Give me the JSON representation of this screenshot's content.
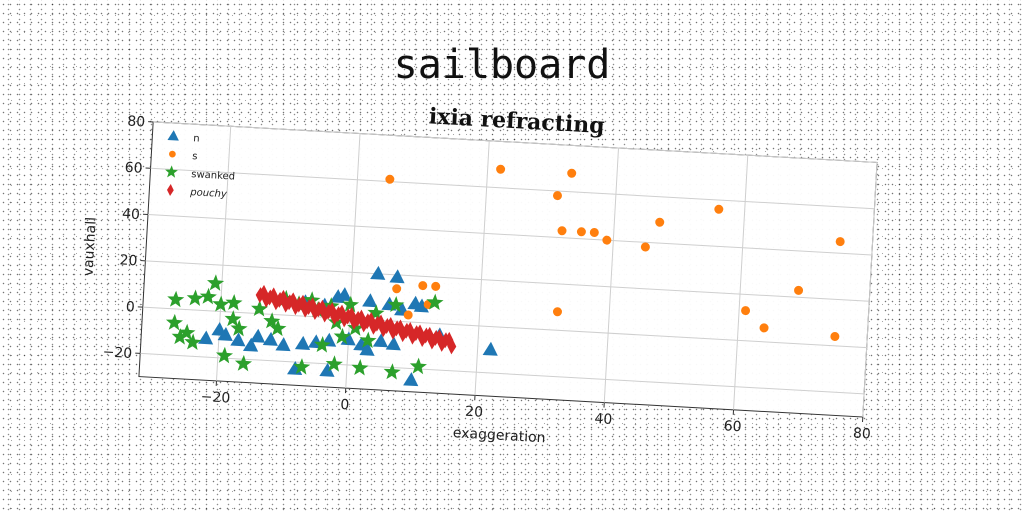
{
  "suptitle": "sailboard",
  "chart_data": {
    "type": "scatter",
    "title": "ixia refracting",
    "xlabel": "exaggeration",
    "ylabel": "vauxhall",
    "xlim": [
      -32,
      80
    ],
    "ylim": [
      -30,
      80
    ],
    "xticks": [
      -20,
      0,
      20,
      40,
      60,
      80
    ],
    "yticks": [
      -20,
      0,
      20,
      40,
      60,
      80
    ],
    "xtick_labels": [
      "−20",
      "0",
      "20",
      "40",
      "60",
      "80"
    ],
    "ytick_labels": [
      "−20",
      "0",
      "20",
      "40",
      "60",
      "80"
    ],
    "grid": true,
    "legend_position": "upper-left",
    "series": [
      {
        "name": "n",
        "marker": "triangle",
        "color": "#1f77b4",
        "points": [
          [
            -17,
            -12
          ],
          [
            -14,
            -10
          ],
          [
            -19,
            -10
          ],
          [
            -12,
            -11
          ],
          [
            -10,
            -13
          ],
          [
            -7,
            -12
          ],
          [
            -5,
            -11
          ],
          [
            -3,
            -10
          ],
          [
            0,
            -9
          ],
          [
            2,
            -11
          ],
          [
            3,
            -13
          ],
          [
            5,
            -9
          ],
          [
            7,
            -10
          ],
          [
            -8,
            -23
          ],
          [
            -3,
            -23
          ],
          [
            -2,
            9
          ],
          [
            -7,
            6
          ],
          [
            -4,
            5
          ],
          [
            3,
            8
          ],
          [
            6,
            7
          ],
          [
            8,
            5
          ],
          [
            10,
            8
          ],
          [
            -1,
            10
          ],
          [
            11,
            7
          ],
          [
            4,
            20
          ],
          [
            7,
            19
          ],
          [
            -22,
            -12
          ],
          [
            -20,
            -8
          ],
          [
            -15,
            -14
          ],
          [
            14,
            -5
          ],
          [
            22,
            -10
          ],
          [
            10,
            -25
          ]
        ]
      },
      {
        "name": "s",
        "marker": "circle",
        "color": "#ff7f0e",
        "points": [
          [
            5,
            61
          ],
          [
            22,
            68
          ],
          [
            33,
            68
          ],
          [
            31,
            58
          ],
          [
            32,
            43
          ],
          [
            35,
            43
          ],
          [
            37,
            43
          ],
          [
            39,
            40
          ],
          [
            45,
            38
          ],
          [
            47,
            49
          ],
          [
            56,
            56
          ],
          [
            75,
            45
          ],
          [
            69,
            23
          ],
          [
            61,
            13
          ],
          [
            64,
            6
          ],
          [
            75,
            4
          ],
          [
            32,
            8
          ],
          [
            13,
            16
          ],
          [
            11,
            16
          ],
          [
            12,
            8
          ],
          [
            9,
            3
          ],
          [
            7,
            14
          ]
        ]
      },
      {
        "name": "swanked",
        "marker": "star",
        "color": "#2ca02c",
        "points": [
          [
            -27,
            4
          ],
          [
            -27,
            -6
          ],
          [
            -26,
            -12
          ],
          [
            -24,
            -14
          ],
          [
            -22,
            6
          ],
          [
            -21,
            12
          ],
          [
            -20,
            3
          ],
          [
            -18,
            4
          ],
          [
            -18,
            -3
          ],
          [
            -17,
            -7
          ],
          [
            -19,
            -19
          ],
          [
            -16,
            -22
          ],
          [
            -12,
            -3
          ],
          [
            -11,
            -6
          ],
          [
            -10,
            7
          ],
          [
            -8,
            5
          ],
          [
            -6,
            7
          ],
          [
            -5,
            3
          ],
          [
            -3,
            5
          ],
          [
            -2,
            -2
          ],
          [
            0,
            6
          ],
          [
            1,
            -4
          ],
          [
            3,
            -9
          ],
          [
            -4,
            -12
          ],
          [
            -7,
            -22
          ],
          [
            -2,
            -20
          ],
          [
            2,
            -21
          ],
          [
            7,
            -22
          ],
          [
            11,
            -19
          ],
          [
            13,
            9
          ],
          [
            7,
            7
          ],
          [
            -14,
            2
          ],
          [
            -24,
            5
          ],
          [
            -25,
            -10
          ],
          [
            -1,
            -8
          ],
          [
            4,
            3
          ]
        ]
      },
      {
        "name": "pouchy",
        "marker": "thin_diamond",
        "color": "#d62728",
        "line": {
          "x_from": -14,
          "x_to": 16,
          "y_from": 8,
          "y_to": -8,
          "count": 60,
          "jitter": 1.5
        }
      }
    ]
  }
}
